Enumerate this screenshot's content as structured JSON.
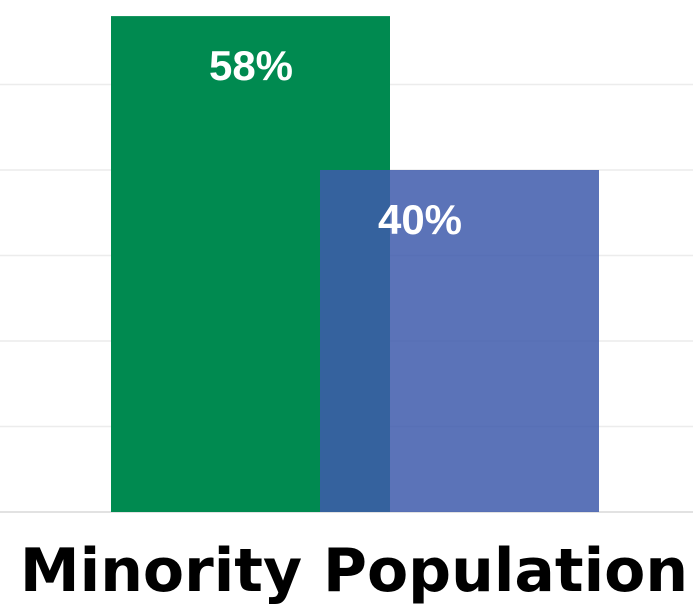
{
  "chart_data": {
    "type": "bar",
    "categories": [
      "Minority Population"
    ],
    "series": [
      {
        "values": [
          58
        ],
        "labels": [
          "58%"
        ],
        "color": "#008a50"
      },
      {
        "values": [
          40
        ],
        "labels": [
          "40%"
        ],
        "color": "#3e5bab",
        "opacity": 0.85
      }
    ],
    "ylim": [
      0,
      60
    ],
    "grid": true,
    "overlapping_bars": true
  }
}
